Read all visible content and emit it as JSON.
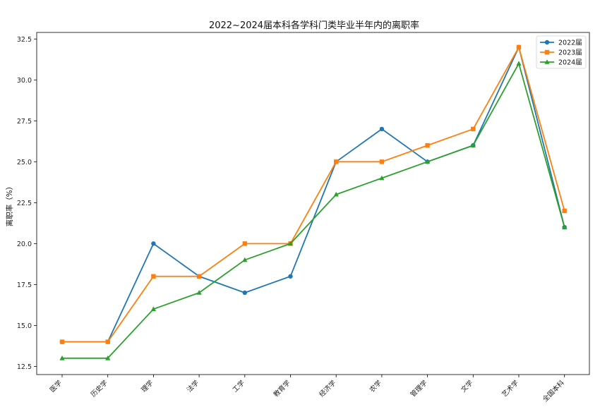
{
  "chart_data": {
    "type": "line",
    "title": "2022~2024届本科各学科门类毕业半年内的离职率",
    "xlabel": "",
    "ylabel": "离职率（%）",
    "categories": [
      "医学",
      "历史学",
      "理学",
      "法学",
      "工学",
      "教育学",
      "经济学",
      "农学",
      "管理学",
      "文学",
      "艺术学",
      "全国本科"
    ],
    "y_ticks": [
      "12.5",
      "15.0",
      "17.5",
      "20.0",
      "22.5",
      "25.0",
      "27.5",
      "30.0",
      "32.5"
    ],
    "ylim": [
      12.0,
      32.9
    ],
    "grid": false,
    "legend_position": "top-right",
    "series": [
      {
        "name": "2022届",
        "color": "#1f77b4",
        "marker": "circle",
        "values": [
          14,
          14,
          20,
          18,
          17,
          18,
          25,
          27,
          25,
          26,
          32,
          21
        ]
      },
      {
        "name": "2023届",
        "color": "#ff7f0e",
        "marker": "square",
        "values": [
          14,
          14,
          18,
          18,
          20,
          20,
          25,
          25,
          26,
          27,
          32,
          22
        ]
      },
      {
        "name": "2024届",
        "color": "#2ca02c",
        "marker": "triangle",
        "values": [
          13,
          13,
          16,
          17,
          19,
          20,
          23,
          24,
          25,
          26,
          31,
          21
        ]
      }
    ]
  }
}
